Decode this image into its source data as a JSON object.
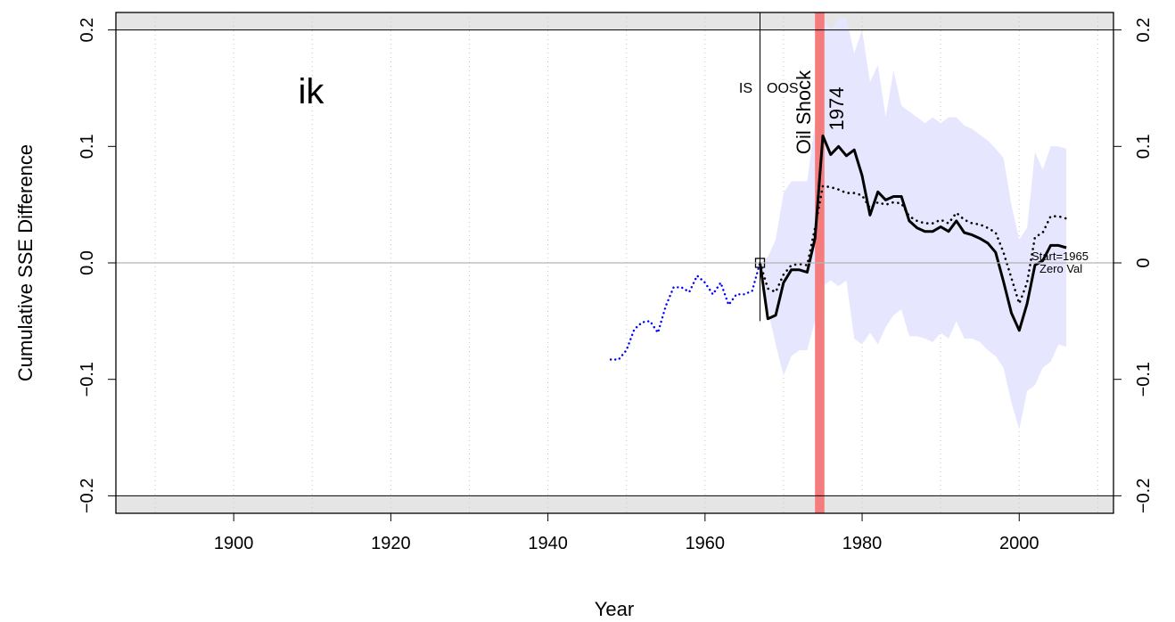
{
  "chart_data": {
    "type": "line",
    "panel_label": "ik",
    "xlabel": "Year",
    "ylabel": "Cumulative SSE Difference",
    "xlim": [
      1885,
      2012
    ],
    "ylim": [
      -0.215,
      0.215
    ],
    "x_ticks": [
      1900,
      1920,
      1940,
      1960,
      1980,
      2000
    ],
    "x_tick_labels": [
      "1900",
      "1920",
      "1940",
      "1960",
      "1980",
      "2000"
    ],
    "y_ticks": [
      -0.2,
      -0.1,
      0.0,
      0.1,
      0.2
    ],
    "y_tick_labels_left": [
      "−0.2",
      "−0.1",
      "0.0",
      "0.1",
      "0.2"
    ],
    "y_tick_labels_right": [
      "−0.2",
      "−0.1",
      "0",
      "0.1",
      "0.2"
    ],
    "grid": true,
    "gray_band_low": -0.2,
    "gray_band_high": 0.2,
    "zero_line": 0.0,
    "split_year": 1967,
    "split_label_left": "IS",
    "split_label_right": "OOS",
    "event": {
      "label": "Oil Shock",
      "year_label": "1974",
      "start": 1974,
      "end": 1975.2
    },
    "start_note": "Start=1965",
    "zero_note": "Zero Val",
    "colors": {
      "is_series": "#0000ff",
      "oos_series": "#000000",
      "band_fill": "#e6e6ff",
      "event_bar": "#f47c7c",
      "gray_band": "#e5e5e5",
      "zero_line": "#b3b3b3"
    },
    "series": [
      {
        "style": "blue-dotted",
        "x": [
          1948,
          1949,
          1950,
          1951,
          1952,
          1953,
          1954,
          1955,
          1956,
          1957,
          1958,
          1959,
          1960,
          1961,
          1962,
          1963,
          1964,
          1965,
          1966,
          1967
        ],
        "y": [
          -0.083,
          -0.083,
          -0.075,
          -0.057,
          -0.051,
          -0.05,
          -0.06,
          -0.037,
          -0.021,
          -0.021,
          -0.025,
          -0.011,
          -0.017,
          -0.027,
          -0.017,
          -0.036,
          -0.027,
          -0.027,
          -0.024,
          0.0
        ]
      },
      {
        "style": "solid-thick",
        "x": [
          1967,
          1968,
          1969,
          1970,
          1971,
          1972,
          1973,
          1974,
          1975,
          1976,
          1977,
          1978,
          1979,
          1980,
          1981,
          1982,
          1983,
          1984,
          1985,
          1986,
          1987,
          1988,
          1989,
          1990,
          1991,
          1992,
          1993,
          1994,
          1995,
          1996,
          1997,
          1998,
          1999,
          2000,
          2001,
          2002,
          2003,
          2004,
          2005,
          2006
        ],
        "y": [
          0.0,
          -0.048,
          -0.045,
          -0.017,
          -0.006,
          -0.006,
          -0.008,
          0.021,
          0.109,
          0.093,
          0.1,
          0.092,
          0.097,
          0.075,
          0.041,
          0.061,
          0.054,
          0.057,
          0.057,
          0.036,
          0.03,
          0.027,
          0.027,
          0.031,
          0.027,
          0.036,
          0.026,
          0.024,
          0.021,
          0.017,
          0.009,
          -0.016,
          -0.043,
          -0.058,
          -0.035,
          -0.002,
          0.002,
          0.015,
          0.015,
          0.013
        ]
      },
      {
        "style": "dotted",
        "x": [
          1967,
          1968,
          1969,
          1970,
          1971,
          1972,
          1973,
          1974,
          1975,
          1976,
          1977,
          1978,
          1979,
          1980,
          1981,
          1982,
          1983,
          1984,
          1985,
          1986,
          1987,
          1988,
          1989,
          1990,
          1991,
          1992,
          1993,
          1994,
          1995,
          1996,
          1997,
          1998,
          1999,
          2000,
          2001,
          2002,
          2003,
          2004,
          2005,
          2006
        ],
        "y": [
          0.0,
          -0.022,
          -0.025,
          -0.01,
          -0.002,
          -0.001,
          -0.002,
          0.03,
          0.066,
          0.065,
          0.063,
          0.06,
          0.06,
          0.058,
          0.047,
          0.052,
          0.05,
          0.052,
          0.051,
          0.04,
          0.036,
          0.034,
          0.034,
          0.037,
          0.034,
          0.043,
          0.037,
          0.034,
          0.033,
          0.03,
          0.026,
          0.009,
          -0.013,
          -0.035,
          -0.017,
          0.022,
          0.026,
          0.04,
          0.04,
          0.038
        ]
      }
    ],
    "band": {
      "x": [
        1967,
        1968,
        1969,
        1970,
        1971,
        1972,
        1973,
        1974,
        1975,
        1976,
        1977,
        1978,
        1979,
        1980,
        1981,
        1982,
        1983,
        1984,
        1985,
        1986,
        1987,
        1988,
        1989,
        1990,
        1991,
        1992,
        1993,
        1994,
        1995,
        1996,
        1997,
        1998,
        1999,
        2000,
        2001,
        2002,
        2003,
        2004,
        2005,
        2006
      ],
      "lower": [
        -0.01,
        -0.04,
        -0.07,
        -0.097,
        -0.08,
        -0.075,
        -0.075,
        -0.05,
        -0.02,
        -0.015,
        -0.02,
        -0.015,
        -0.065,
        -0.07,
        -0.06,
        -0.07,
        -0.055,
        -0.045,
        -0.04,
        -0.063,
        -0.063,
        -0.065,
        -0.068,
        -0.06,
        -0.065,
        -0.05,
        -0.065,
        -0.065,
        -0.068,
        -0.075,
        -0.08,
        -0.09,
        -0.12,
        -0.143,
        -0.11,
        -0.105,
        -0.09,
        -0.085,
        -0.07,
        -0.072
      ],
      "upper": [
        0.0,
        0.005,
        0.02,
        0.06,
        0.07,
        0.07,
        0.07,
        0.12,
        0.21,
        0.2,
        0.21,
        0.21,
        0.18,
        0.2,
        0.155,
        0.17,
        0.125,
        0.165,
        0.135,
        0.13,
        0.125,
        0.12,
        0.125,
        0.12,
        0.125,
        0.125,
        0.118,
        0.115,
        0.11,
        0.105,
        0.098,
        0.09,
        0.05,
        0.02,
        0.03,
        0.095,
        0.08,
        0.1,
        0.1,
        0.098
      ]
    }
  }
}
